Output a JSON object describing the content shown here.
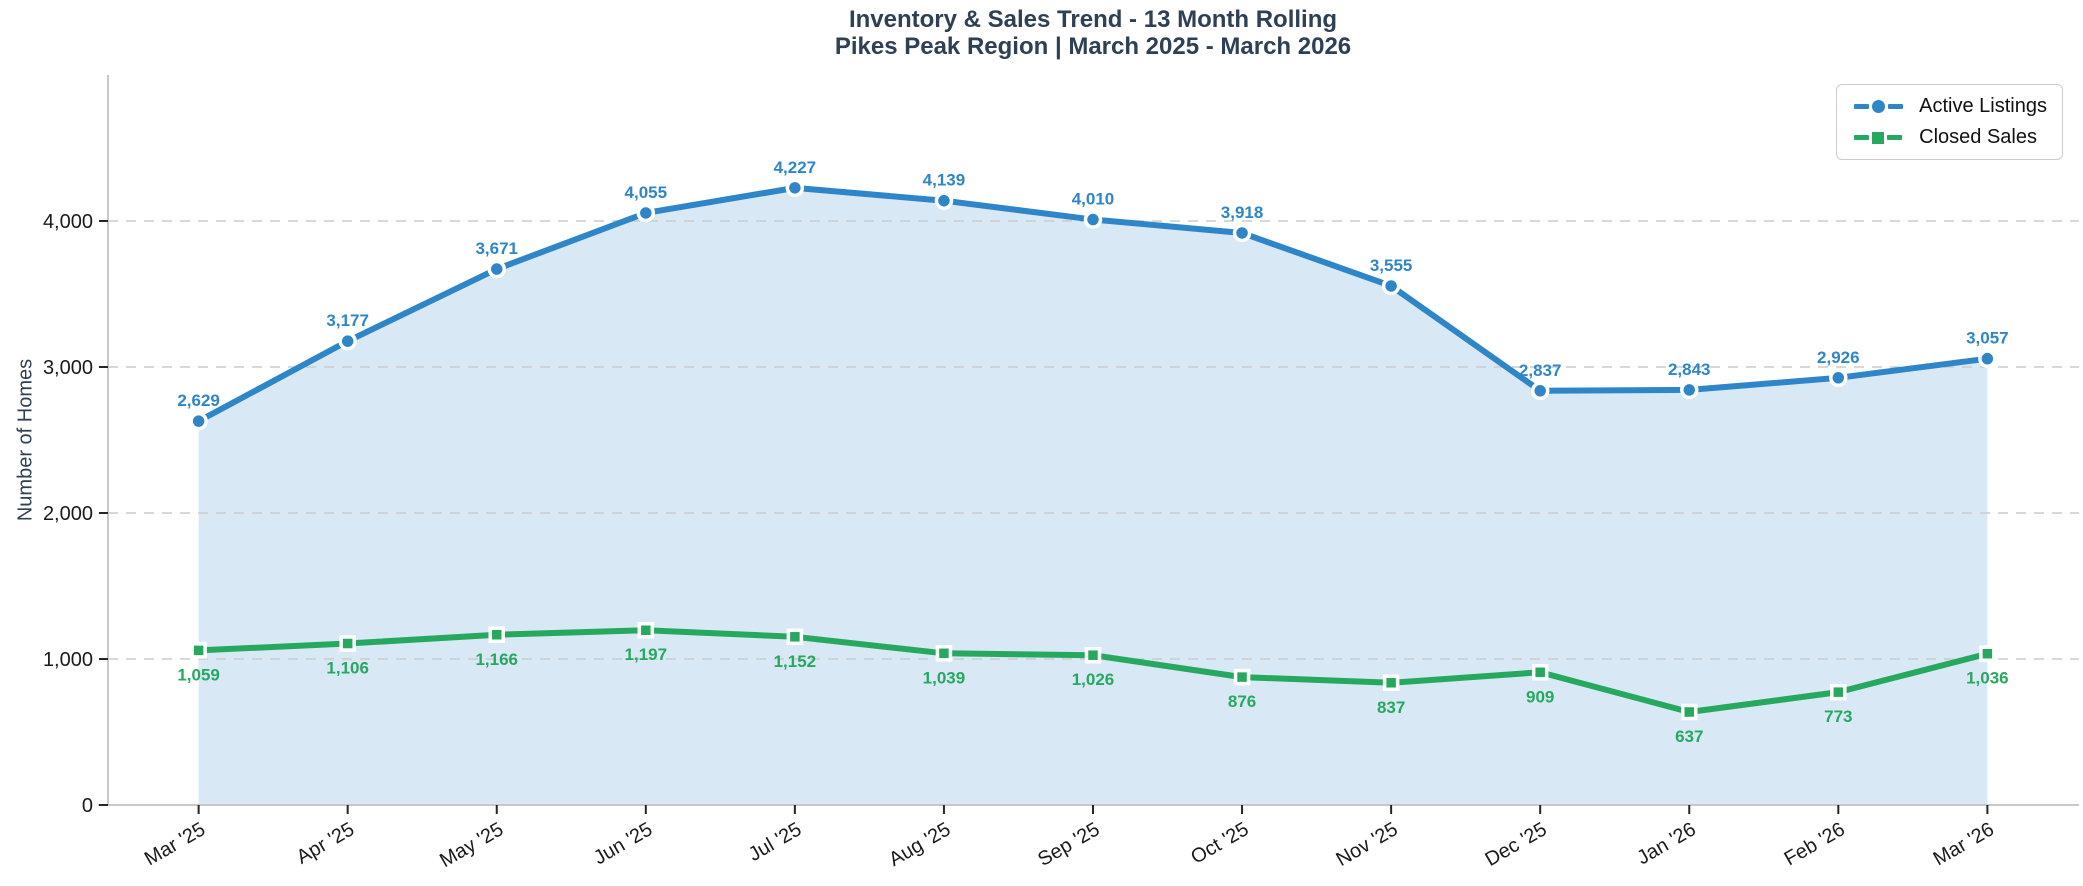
{
  "chart_data": {
    "type": "line",
    "title": "Inventory & Sales Trend - 13 Month Rolling",
    "subtitle": "Pikes Peak Region | March 2025 - March 2026",
    "ylabel": "Number of Homes",
    "categories": [
      "Mar '25",
      "Apr '25",
      "May '25",
      "Jun '25",
      "Jul '25",
      "Aug '25",
      "Sep '25",
      "Oct '25",
      "Nov '25",
      "Dec '25",
      "Jan '26",
      "Feb '26",
      "Mar '26"
    ],
    "series": [
      {
        "name": "Active Listings",
        "marker": "circle",
        "color": "#2e86c8",
        "area_fill": "#d9e8f5",
        "label_position": "above",
        "values": [
          2629,
          3177,
          3671,
          4055,
          4227,
          4139,
          4010,
          3918,
          3555,
          2837,
          2843,
          2926,
          3057
        ],
        "labels": [
          "2,629",
          "3,177",
          "3,671",
          "4,055",
          "4,227",
          "4,139",
          "4,010",
          "3,918",
          "3,555",
          "2,837",
          "2,843",
          "2,926",
          "3,057"
        ]
      },
      {
        "name": "Closed Sales",
        "marker": "square",
        "color": "#27a85f",
        "area_fill": null,
        "label_position": "below",
        "values": [
          1059,
          1106,
          1166,
          1197,
          1152,
          1039,
          1026,
          876,
          837,
          909,
          637,
          773,
          1036
        ],
        "labels": [
          "1,059",
          "1,106",
          "1,166",
          "1,197",
          "1,152",
          "1,039",
          "1,026",
          "876",
          "837",
          "909",
          "637",
          "773",
          "1,036"
        ]
      }
    ],
    "yticks": {
      "values": [
        0,
        1000,
        2000,
        3000,
        4000
      ],
      "labels": [
        "0",
        "1,000",
        "2,000",
        "3,000",
        "4,000"
      ]
    },
    "ylim": [
      0,
      5000
    ],
    "grid": "horizontal-dashed",
    "legend_position": "top-right",
    "style": {
      "grid_color": "#cccccc",
      "spine_color": "#c8c8c8",
      "tick_mark_color": "#262626",
      "tick_text_color": "#1a1a1a",
      "title_color": "#2e4053"
    }
  }
}
